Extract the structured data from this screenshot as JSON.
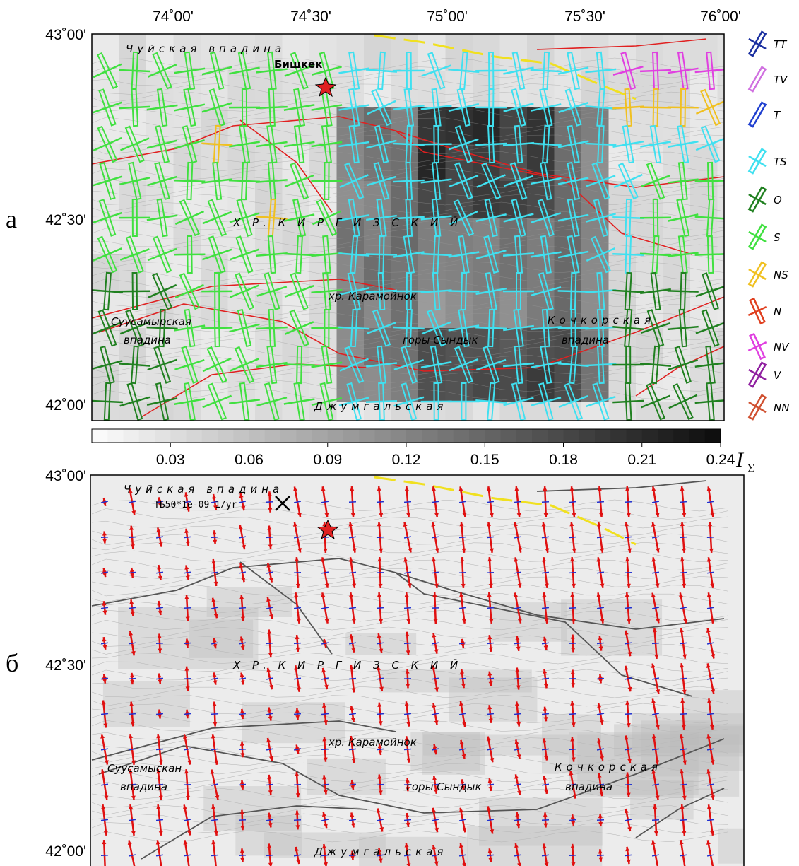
{
  "panel_a": {
    "label": "а",
    "lon_ticks": [
      "74˚00'",
      "74˚30'",
      "75˚00'",
      "75˚30'",
      "76˚00'"
    ],
    "lat_ticks": [
      "43˚00'",
      "42˚30'",
      "42˚00'"
    ],
    "places": {
      "depression_north": "Чуйская впадина",
      "city": "Бишкек",
      "range": "Х Р. К И Р Г И З С К И Й",
      "ridge": "хр. Карамойнок",
      "suusamyr_1": "Суусамырская",
      "suusamyr_2": "впадина",
      "syndyk": "горы Сындык",
      "kochkor_1": "Кочкорская",
      "kochkor_2": "впадина",
      "jumgal": "Джумгальская"
    },
    "legend": [
      {
        "label": "TT",
        "color": "#1a2fa0"
      },
      {
        "label": "TV",
        "color": "#d070e0"
      },
      {
        "label": "T",
        "color": "#2040d0"
      },
      {
        "label": "TS",
        "color": "#40e0f0"
      },
      {
        "label": "O",
        "color": "#208020"
      },
      {
        "label": "S",
        "color": "#40e040"
      },
      {
        "label": "NS",
        "color": "#f0c020"
      },
      {
        "label": "N",
        "color": "#e04020"
      },
      {
        "label": "NV",
        "color": "#e040e0"
      },
      {
        "label": "V",
        "color": "#9020a0"
      },
      {
        "label": "NN",
        "color": "#d05030"
      }
    ],
    "colorbar": {
      "lim": [
        0,
        0.24
      ],
      "ticks": [
        0.03,
        0.06,
        0.09,
        0.12,
        0.15,
        0.18,
        0.21,
        0.24
      ],
      "symbol": "I",
      "symbol_sub": "Σ"
    }
  },
  "panel_b": {
    "label": "б",
    "lat_ticks": [
      "43˚00'",
      "42˚30'",
      "42˚00'"
    ],
    "places": {
      "depression_north": "Чуйская впадина",
      "range": "Х Р. К И Р Г И З С К И Й",
      "ridge": "хр. Карамойнок",
      "suusamyr_1": "Суусамыскан",
      "suusamyr_2": "впадина",
      "syndyk": "горы Сындык",
      "kochkor_1": "Кочкорская",
      "kochkor_2": "впадина",
      "jumgal": "Джумгальская"
    },
    "scale_label": "ТБ50*1e-09 1/yr"
  }
}
